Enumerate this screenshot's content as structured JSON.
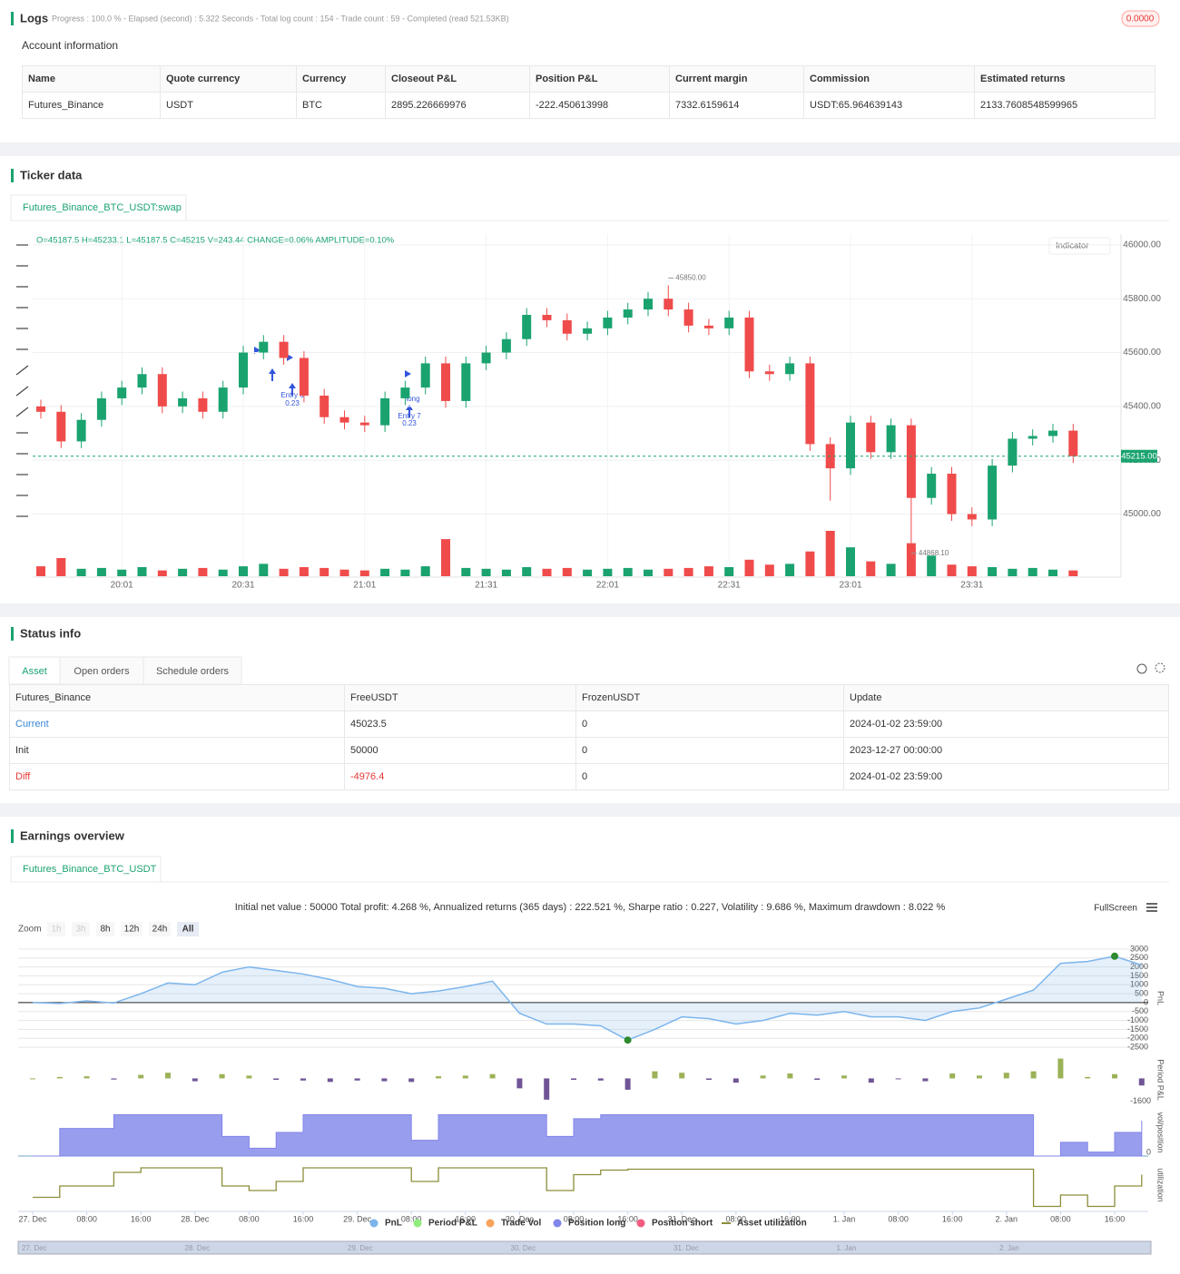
{
  "logs": {
    "title": "Logs",
    "summary": "Progress : 100.0 % - Elapsed (second) : 5.322 Seconds - Total log count : 154 - Trade count : 59 - Completed (read 521.53KB)",
    "badge": "0.0000"
  },
  "account": {
    "title": "Account information",
    "columns": [
      "Name",
      "Quote currency",
      "Currency",
      "Closeout P&L",
      "Position P&L",
      "Current margin",
      "Commission",
      "Estimated returns"
    ],
    "rows": [
      [
        "Futures_Binance",
        "USDT",
        "BTC",
        "2895.226669976",
        "-222.450613998",
        "7332.6159614",
        "USDT:65.964639143",
        "2133.7608548599965"
      ]
    ]
  },
  "ticker": {
    "title": "Ticker data",
    "tab": "Futures_Binance_BTC_USDT:swap",
    "ohlc_text": "O=45187.5 H=45233.1 L=45187.5 C=45215 V=243.44 CHANGE=0.06% AMPLITUDE=0.10%",
    "indicator": "Indicator",
    "markers": [
      {
        "label": "Entry 6",
        "amount": 0.23
      },
      {
        "label": "Entry 7",
        "amount": 0.23
      },
      {
        "label": "long"
      }
    ]
  },
  "status": {
    "title": "Status info",
    "tabs": [
      "Asset",
      "Open orders",
      "Schedule orders"
    ],
    "columns": [
      "Futures_Binance",
      "FreeUSDT",
      "FrozenUSDT",
      "Update"
    ],
    "rows": [
      [
        "Current",
        "45023.5",
        "0",
        "2024-01-02 23:59:00"
      ],
      [
        "Init",
        "50000",
        "0",
        "2023-12-27 00:00:00"
      ],
      [
        "Diff",
        "-4976.4",
        "0",
        "2024-01-02 23:59:00"
      ]
    ]
  },
  "earnings": {
    "title": "Earnings overview",
    "tab": "Futures_Binance_BTC_USDT",
    "summary": "Initial net value : 50000 Total profit: 4.268 %, Annualized returns (365 days) : 222.521 %, Sharpe ratio : 0.227, Volatility : 9.686 %, Maximum drawdown : 8.022 %",
    "fullscreen": "FullScreen",
    "zoom_label": "Zoom",
    "zoom_buttons": [
      "1h",
      "3h",
      "8h",
      "12h",
      "24h",
      "All"
    ],
    "legend": [
      {
        "name": "PnL",
        "color": "#7cb5ec"
      },
      {
        "name": "Period P&L",
        "color": "#90ed7d"
      },
      {
        "name": "Trade Vol",
        "color": "#f7a35c"
      },
      {
        "name": "Position long",
        "color": "#8085e9"
      },
      {
        "name": "Position short",
        "color": "#f15c80"
      },
      {
        "name": "Asset utilization",
        "color": "#8d8d3c"
      }
    ],
    "navigator_labels": [
      "27. Dec",
      "28. Dec",
      "29. Dec",
      "30. Dec",
      "31. Dec",
      "1. Jan",
      "2. Jan"
    ]
  },
  "chart_data": [
    {
      "type": "candlestick",
      "categories": [
        null,
        null,
        null,
        null,
        "20:01",
        null,
        null,
        null,
        null,
        null,
        "20:31",
        null,
        null,
        null,
        null,
        null,
        "21:01",
        null,
        null,
        null,
        null,
        null,
        "21:31",
        null,
        null,
        null,
        null,
        null,
        "22:01",
        null,
        null,
        null,
        null,
        null,
        "22:31",
        null,
        null,
        null,
        null,
        null,
        "23:01",
        null,
        null,
        null,
        null,
        null,
        "23:31",
        null,
        null,
        null,
        null,
        null
      ],
      "open": [
        45400,
        45380,
        45270,
        45350,
        45430,
        45470,
        45520,
        45400,
        45430,
        45380,
        45470,
        45600,
        45640,
        45580,
        45440,
        45360,
        45340,
        45330,
        45430,
        45470,
        45560,
        45420,
        45560,
        45600,
        45650,
        45740,
        45720,
        45670,
        45690,
        45730,
        45760,
        45800,
        45760,
        45700,
        45690,
        45730,
        45530,
        45520,
        45560,
        45260,
        45170,
        45340,
        45230,
        45330,
        45060,
        45150,
        45000,
        44980,
        45180,
        45280,
        45290,
        45310
      ],
      "high": [
        45425,
        45405,
        45375,
        45455,
        45495,
        45545,
        45545,
        45455,
        45455,
        45495,
        45625,
        45665,
        45665,
        45605,
        45465,
        45385,
        45365,
        45455,
        45495,
        45585,
        45585,
        45585,
        45625,
        45675,
        45765,
        45765,
        45745,
        45715,
        45755,
        45785,
        45825,
        45850,
        45785,
        45725,
        45755,
        45755,
        45555,
        45585,
        45585,
        45285,
        45365,
        45365,
        45355,
        45355,
        45175,
        45175,
        45025,
        45205,
        45305,
        45315,
        45335,
        45335
      ],
      "low": [
        45355,
        45245,
        45245,
        45325,
        45405,
        45445,
        45375,
        45375,
        45355,
        45355,
        45445,
        45575,
        45555,
        45415,
        45335,
        45315,
        45305,
        45305,
        45405,
        45445,
        45395,
        45395,
        45535,
        45575,
        45625,
        45695,
        45645,
        45645,
        45665,
        45705,
        45735,
        45735,
        45675,
        45665,
        45665,
        45505,
        45495,
        45495,
        45235,
        45050,
        45145,
        45205,
        45205,
        44868.1,
        45035,
        44975,
        44955,
        44955,
        45155,
        45255,
        45265,
        45190
      ],
      "close": [
        45380,
        45270,
        45350,
        45430,
        45470,
        45520,
        45400,
        45430,
        45380,
        45470,
        45600,
        45640,
        45580,
        45440,
        45360,
        45340,
        45330,
        45430,
        45470,
        45560,
        45420,
        45560,
        45600,
        45650,
        45740,
        45720,
        45670,
        45690,
        45730,
        45760,
        45800,
        45760,
        45700,
        45690,
        45730,
        45530,
        45520,
        45560,
        45260,
        45170,
        45340,
        45230,
        45330,
        45060,
        45150,
        45000,
        44980,
        45180,
        45280,
        45290,
        45310,
        45215
      ],
      "volume": [
        12,
        22,
        9,
        10,
        8,
        11,
        7,
        9,
        10,
        8,
        12,
        15,
        9,
        11,
        10,
        8,
        7,
        9,
        8,
        12,
        45,
        10,
        9,
        8,
        11,
        9,
        10,
        8,
        9,
        10,
        8,
        9,
        10,
        12,
        11,
        20,
        14,
        15,
        30,
        55,
        35,
        18,
        15,
        40,
        25,
        14,
        12,
        11,
        9,
        10,
        8,
        7
      ],
      "up_color": "#1aa36f",
      "down_color": "#f04b4b",
      "ylim": [
        44840,
        46040
      ],
      "yticks": [
        {
          "value": 45000,
          "label": "45000.00"
        },
        {
          "value": 45200,
          "label": "45200.00"
        },
        {
          "value": 45400,
          "label": "45400.00"
        },
        {
          "value": 45600,
          "label": "45600.00"
        },
        {
          "value": 45800,
          "label": "45800.00"
        },
        {
          "value": 46000,
          "label": "46000.00"
        }
      ],
      "max_label": {
        "value": 45850,
        "label": "45850.00"
      },
      "min_label": {
        "value": 44868.1,
        "label": "44868.10"
      },
      "last_price": {
        "value": 45215,
        "label": "45215.00"
      }
    },
    {
      "type": "line",
      "y_label": "PnL",
      "color": "#7cb5ec",
      "marker_color": "#2e8b2e",
      "categories": [
        "27. Dec",
        null,
        "08:00",
        null,
        "16:00",
        null,
        "28. Dec",
        null,
        "08:00",
        null,
        "16:00",
        null,
        "29. Dec",
        null,
        "08:00",
        null,
        "16:00",
        null,
        "30. Dec",
        null,
        "08:00",
        null,
        "16:00",
        null,
        "31. Dec",
        null,
        "08:00",
        null,
        "16:00",
        null,
        "1. Jan",
        null,
        "08:00",
        null,
        "16:00",
        null,
        "2. Jan",
        null,
        "08:00",
        null,
        "16:00",
        null
      ],
      "values": [
        0,
        -50,
        100,
        -20,
        500,
        1100,
        1000,
        1700,
        2000,
        1800,
        1600,
        1300,
        900,
        800,
        500,
        650,
        900,
        1200,
        -600,
        -1200,
        -1200,
        -1300,
        -2100,
        -1500,
        -800,
        -900,
        -1200,
        -1000,
        -600,
        -700,
        -500,
        -800,
        -800,
        -1000,
        -500,
        -300,
        200,
        700,
        2200,
        2300,
        2600,
        2100
      ],
      "ylim": [
        -2800,
        3300
      ],
      "yticks": [
        -2500,
        -2000,
        -1500,
        -1000,
        -500,
        0,
        500,
        1000,
        1500,
        2000,
        2500,
        3000
      ]
    },
    {
      "type": "bar",
      "y_label": "Period P&L",
      "colors": {
        "positive": "#9bb257",
        "negative": "#6f5596"
      },
      "values": [
        0,
        100,
        150,
        -80,
        250,
        400,
        -200,
        300,
        200,
        -100,
        -150,
        -250,
        -150,
        -200,
        -250,
        150,
        200,
        300,
        -700,
        -1500,
        -100,
        -150,
        -800,
        500,
        400,
        -100,
        -300,
        200,
        350,
        -100,
        200,
        -300,
        -50,
        -200,
        350,
        200,
        400,
        500,
        1400,
        100,
        300,
        -500
      ],
      "ylim": [
        -1700,
        1500
      ],
      "yticks": [
        -1600
      ]
    },
    {
      "type": "area",
      "y_label": "vol/position",
      "color": "#8085e9",
      "values": [
        0,
        0.7,
        0.7,
        1.05,
        1.05,
        1.05,
        1.05,
        0.5,
        0.2,
        0.6,
        1.05,
        1.05,
        1.05,
        1.05,
        0.4,
        1.05,
        1.05,
        1.05,
        1.05,
        0.5,
        0.95,
        1.05,
        1.05,
        1.05,
        1.05,
        1.05,
        1.05,
        1.05,
        1.05,
        1.05,
        1.05,
        1.05,
        1.05,
        1.05,
        1.05,
        1.05,
        1.05,
        0,
        0.35,
        0.1,
        0.6,
        0.9
      ],
      "ylim": [
        0,
        1.2
      ],
      "yticks": [
        0
      ]
    },
    {
      "type": "line",
      "y_label": "utilization",
      "color": "#8d8d3c",
      "values": [
        0.25,
        0.5,
        0.5,
        0.8,
        0.9,
        0.9,
        0.9,
        0.5,
        0.4,
        0.6,
        0.9,
        0.9,
        0.9,
        0.9,
        0.6,
        0.9,
        0.9,
        0.9,
        0.9,
        0.4,
        0.75,
        0.85,
        0.87,
        0.87,
        0.87,
        0.87,
        0.87,
        0.87,
        0.87,
        0.87,
        0.87,
        0.87,
        0.87,
        0.87,
        0.87,
        0.87,
        0.87,
        0.05,
        0.3,
        0.05,
        0.5,
        0.75
      ],
      "ylim": [
        0,
        1
      ]
    }
  ]
}
